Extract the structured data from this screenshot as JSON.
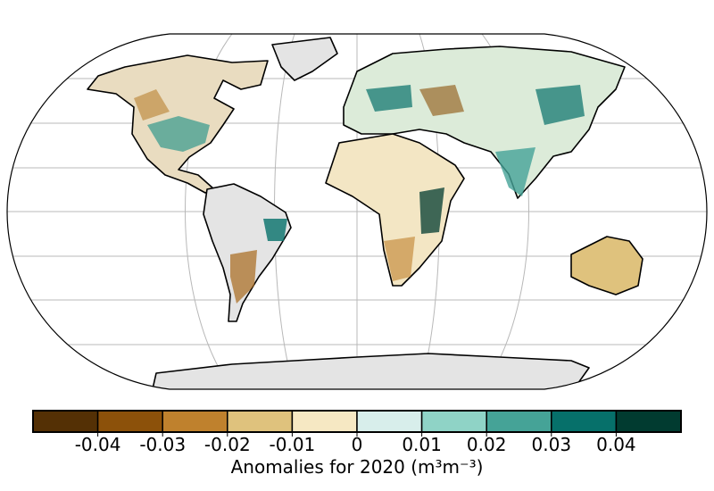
{
  "colorbar": {
    "bounds": [
      -0.05,
      -0.04,
      -0.03,
      -0.02,
      -0.01,
      0,
      0.01,
      0.02,
      0.03,
      0.04,
      0.05
    ],
    "colors": [
      "#543005",
      "#8c510a",
      "#bf812d",
      "#dfc27d",
      "#f6e8c3",
      "#d8eeeb",
      "#8fd3c6",
      "#45a397",
      "#06706a",
      "#013b30"
    ],
    "ticks": [
      -0.04,
      -0.03,
      -0.02,
      -0.01,
      0,
      0.01,
      0.02,
      0.03,
      0.04
    ],
    "label": "Anomalies for 2020 (m³m⁻³)"
  }
}
